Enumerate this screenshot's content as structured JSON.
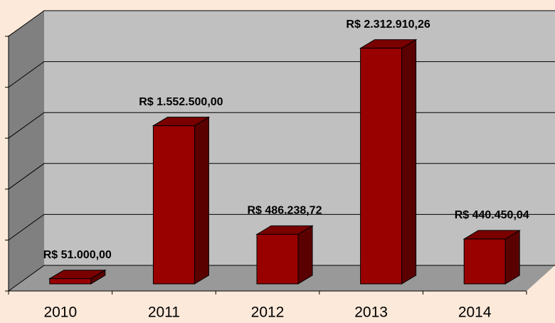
{
  "chart_data": {
    "type": "bar3d",
    "categories": [
      "2010",
      "2011",
      "2012",
      "2013",
      "2014"
    ],
    "values": [
      51000,
      1552500,
      486238.72,
      2312910.26,
      440450.04
    ],
    "value_labels": [
      "R$ 51.000,00",
      "R$ 1.552.500,00",
      "R$ 486.238,72",
      "R$ 2.312.910,26",
      "R$ 440.450,04"
    ],
    "color": "#990000",
    "ylim": [
      0,
      2500000
    ],
    "yticks": [
      0,
      500000,
      1000000,
      1500000,
      2000000,
      2500000
    ],
    "grid": true
  }
}
